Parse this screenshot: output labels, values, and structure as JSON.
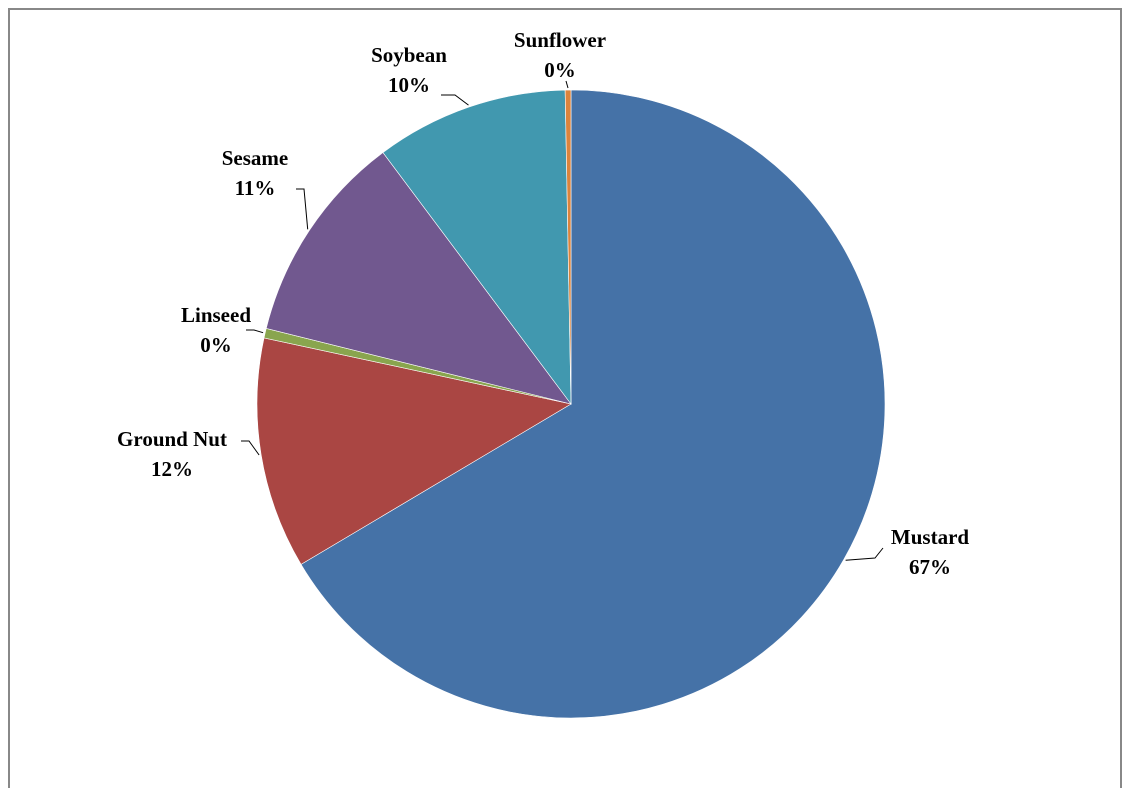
{
  "chart_data": {
    "type": "pie",
    "title": "",
    "slices": [
      {
        "name": "Mustard",
        "value": 67,
        "label": "67%",
        "color": "#4572A7"
      },
      {
        "name": "Ground Nut",
        "value": 12,
        "label": "12%",
        "color": "#AA4643"
      },
      {
        "name": "Linseed",
        "value": 0.5,
        "label": "0%",
        "color": "#89A54E"
      },
      {
        "name": "Sesame",
        "value": 11,
        "label": "11%",
        "color": "#71588F"
      },
      {
        "name": "Soybean",
        "value": 10,
        "label": "10%",
        "color": "#4198AF"
      },
      {
        "name": "Sunflower",
        "value": 0.3,
        "label": "0%",
        "color": "#DB843D"
      }
    ],
    "start": "12 o'clock, clockwise",
    "legend": "none (category labels with leader lines)"
  }
}
